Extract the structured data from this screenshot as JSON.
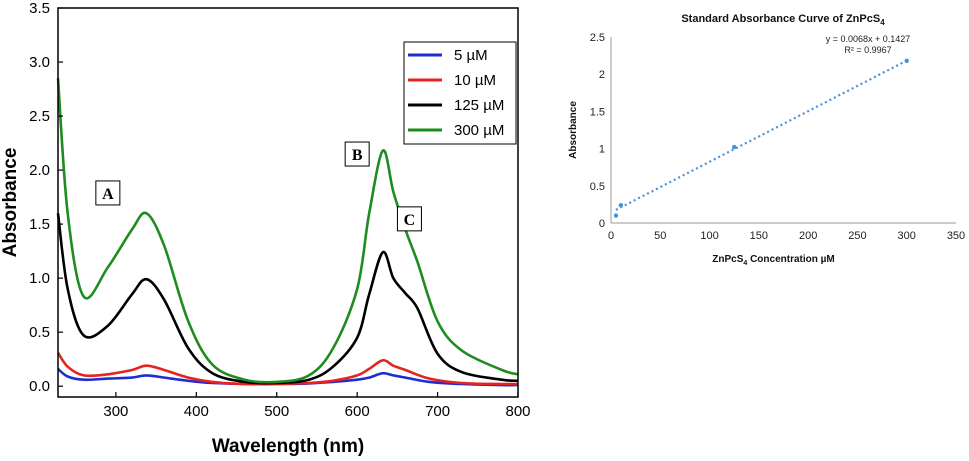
{
  "chart_data": [
    {
      "type": "line",
      "title": "",
      "xlabel": "Wavelength (nm)",
      "ylabel": "Absorbance",
      "xlim": [
        228,
        800
      ],
      "ylim": [
        -0.1,
        3.5
      ],
      "xticks": [
        300,
        400,
        500,
        600,
        700,
        800
      ],
      "yticks": [
        0.0,
        0.5,
        1.0,
        1.5,
        2.0,
        2.5,
        3.0,
        3.5
      ],
      "legend_position": "top-right",
      "series": [
        {
          "name": "5 µM",
          "color": "#1f2ed1",
          "x": [
            228,
            240,
            260,
            290,
            320,
            338,
            360,
            390,
            420,
            460,
            500,
            540,
            570,
            600,
            615,
            632,
            645,
            660,
            690,
            730,
            780,
            800
          ],
          "y": [
            0.16,
            0.09,
            0.06,
            0.07,
            0.08,
            0.1,
            0.08,
            0.05,
            0.03,
            0.02,
            0.02,
            0.025,
            0.04,
            0.06,
            0.08,
            0.12,
            0.1,
            0.08,
            0.04,
            0.02,
            0.01,
            0.01
          ]
        },
        {
          "name": "10 µM",
          "color": "#e5231f",
          "x": [
            228,
            240,
            260,
            290,
            320,
            338,
            360,
            390,
            420,
            460,
            500,
            540,
            570,
            600,
            615,
            632,
            645,
            660,
            690,
            730,
            780,
            800
          ],
          "y": [
            0.31,
            0.18,
            0.1,
            0.11,
            0.15,
            0.19,
            0.15,
            0.08,
            0.04,
            0.02,
            0.02,
            0.03,
            0.05,
            0.1,
            0.16,
            0.24,
            0.19,
            0.15,
            0.07,
            0.03,
            0.02,
            0.02
          ]
        },
        {
          "name": "125 µM",
          "color": "#000000",
          "x": [
            228,
            240,
            260,
            290,
            320,
            338,
            360,
            390,
            420,
            460,
            500,
            540,
            570,
            600,
            615,
            632,
            645,
            660,
            675,
            700,
            730,
            780,
            800
          ],
          "y": [
            1.6,
            0.9,
            0.47,
            0.56,
            0.85,
            0.99,
            0.8,
            0.35,
            0.12,
            0.04,
            0.03,
            0.06,
            0.18,
            0.45,
            0.85,
            1.24,
            1.0,
            0.86,
            0.72,
            0.3,
            0.13,
            0.06,
            0.05
          ]
        },
        {
          "name": "300 µM",
          "color": "#1e8c1e",
          "x": [
            228,
            240,
            260,
            290,
            320,
            338,
            360,
            390,
            420,
            460,
            500,
            540,
            570,
            600,
            615,
            632,
            645,
            660,
            675,
            700,
            730,
            780,
            800
          ],
          "y": [
            2.85,
            1.6,
            0.83,
            1.1,
            1.45,
            1.6,
            1.3,
            0.6,
            0.2,
            0.06,
            0.04,
            0.1,
            0.35,
            0.9,
            1.6,
            2.18,
            1.8,
            1.45,
            1.15,
            0.6,
            0.33,
            0.15,
            0.11
          ]
        }
      ],
      "annotations": [
        {
          "label": "A",
          "x": 290,
          "y": 1.77
        },
        {
          "label": "B",
          "x": 600,
          "y": 2.13
        },
        {
          "label": "C",
          "x": 665,
          "y": 1.53
        }
      ]
    },
    {
      "type": "scatter",
      "title": "Standard Absorbance Curve of ZnPcS",
      "title_subscript": "4",
      "xlabel": "ZnPcS",
      "xlabel_subscript": "4",
      "xlabel_suffix": " Concentration µM",
      "ylabel": "Absorbance",
      "xlim": [
        0,
        350
      ],
      "ylim": [
        0,
        2.5
      ],
      "xticks": [
        0,
        50,
        100,
        150,
        200,
        250,
        300,
        350
      ],
      "yticks": [
        0,
        0.5,
        1,
        1.5,
        2,
        2.5
      ],
      "color": "#4a90d9",
      "x": [
        5,
        10,
        125,
        300
      ],
      "y": [
        0.1,
        0.24,
        1.02,
        2.18
      ],
      "trendline": {
        "slope": 0.0068,
        "intercept": 0.1427,
        "x_range": [
          5,
          300
        ]
      },
      "equation": "y = 0.0068x + 0.1427",
      "r_squared": "R² = 0.9967"
    }
  ]
}
